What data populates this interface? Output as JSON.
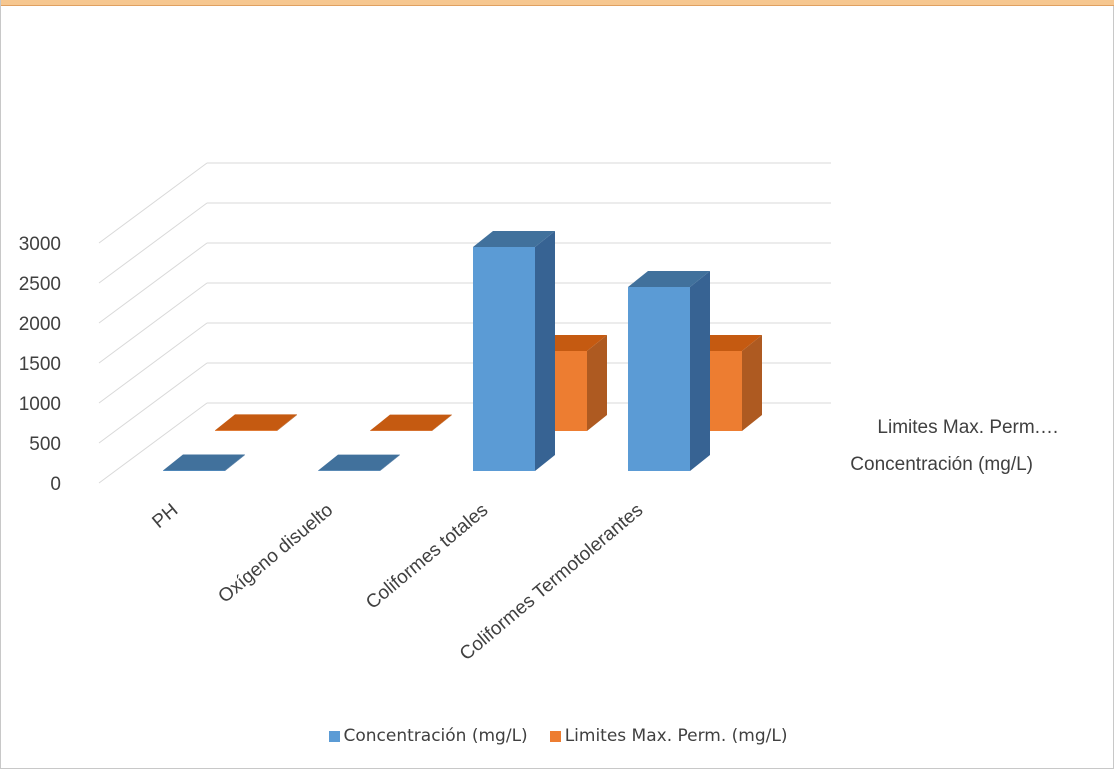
{
  "chart_data": {
    "type": "bar",
    "title": "",
    "categories": [
      "PH",
      "Oxígeno disuelto",
      "Coliformes totales",
      "Coliformes Termotolerantes"
    ],
    "series": [
      {
        "name": "Concentración (mg/L)",
        "values": [
          7,
          5,
          2800,
          2300
        ],
        "color": "#5b9bd5"
      },
      {
        "name": "Limites Max. Perm. (mg/L)",
        "values": [
          8,
          4,
          1000,
          1000
        ],
        "color": "#ed7d31"
      }
    ],
    "depth_labels": [
      "Limites Max. Perm.…",
      "Concentración (mg/L)"
    ],
    "y_ticks": [
      "0",
      "500",
      "1000",
      "1500",
      "2000",
      "2500",
      "3000"
    ],
    "ylim": [
      0,
      3000
    ],
    "grid": true,
    "legend_position": "bottom",
    "legend": [
      "Concentración (mg/L)",
      "Limites Max. Perm. (mg/L)"
    ]
  }
}
